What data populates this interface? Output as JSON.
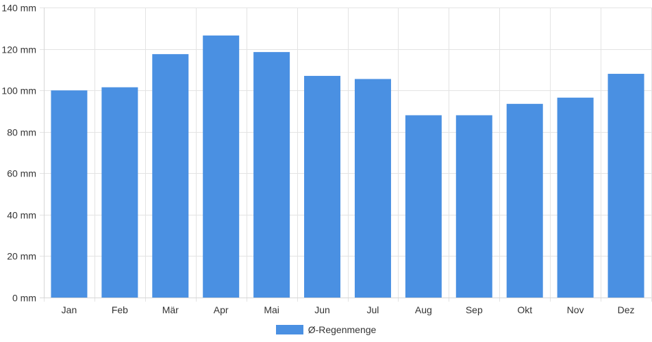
{
  "chart_data": {
    "type": "bar",
    "categories": [
      "Jan",
      "Feb",
      "Mär",
      "Apr",
      "Mai",
      "Jun",
      "Jul",
      "Aug",
      "Sep",
      "Okt",
      "Nov",
      "Dez"
    ],
    "series": [
      {
        "name": "Ø-Regenmenge",
        "color": "#4a90e2",
        "values": [
          100,
          101.5,
          117.5,
          126.5,
          118.5,
          107,
          105.5,
          88,
          88,
          93.5,
          96.5,
          108
        ]
      }
    ],
    "y_ticks": [
      "0 mm",
      "20 mm",
      "40 mm",
      "60 mm",
      "80 mm",
      "100 mm",
      "120 mm",
      "140 mm"
    ],
    "ylim": [
      0,
      140
    ],
    "unit": "mm",
    "grid": true,
    "legend_position": "bottom-center"
  },
  "legend": {
    "label": "Ø-Regenmenge",
    "color": "#4a90e2"
  }
}
